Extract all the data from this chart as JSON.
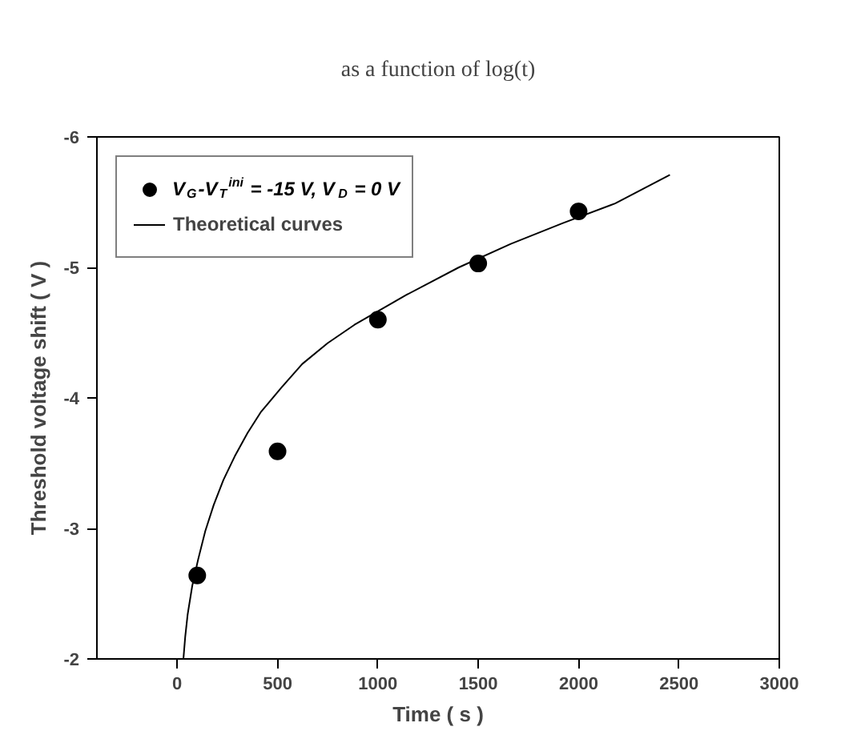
{
  "chart_data": {
    "type": "scatter",
    "title": "as a function of log(t)",
    "xlabel": "Time ( s )",
    "ylabel": "Threshold voltage shift ( V )",
    "xlim": [
      -400,
      3000
    ],
    "xticks": [
      0,
      500,
      1000,
      1500,
      2000,
      2500,
      3000
    ],
    "ylim": [
      -2,
      -6
    ],
    "yticks": [
      -2,
      -3,
      -4,
      -5,
      -6
    ],
    "grid": false,
    "legend": "top left",
    "series": [
      {
        "name": "V$_{G}$-V$_{T}$$^{ini}$ = -15 V, V$_{D}$ = 0 V",
        "marker": "circle",
        "color": "#000000",
        "x": [
          100,
          500,
          1000,
          1500,
          2000
        ],
        "values": [
          -2.64,
          -3.59,
          -4.6,
          -5.03,
          -5.43
        ]
      },
      {
        "name": "Theoretical curves",
        "type": "line",
        "color": "#000000",
        "line_style": "solid",
        "x": [
          31,
          40,
          52,
          75,
          104,
          140,
          182,
          230,
          286,
          350,
          416,
          520,
          623,
          750,
          883,
          1143,
          1403,
          1662,
          1922,
          2182,
          2455
        ],
        "values": [
          -2.0,
          -2.17,
          -2.34,
          -2.56,
          -2.76,
          -2.98,
          -3.18,
          -3.37,
          -3.55,
          -3.73,
          -3.89,
          -4.08,
          -4.26,
          -4.42,
          -4.56,
          -4.79,
          -5.0,
          -5.18,
          -5.34,
          -5.49,
          -5.71
        ]
      }
    ]
  }
}
